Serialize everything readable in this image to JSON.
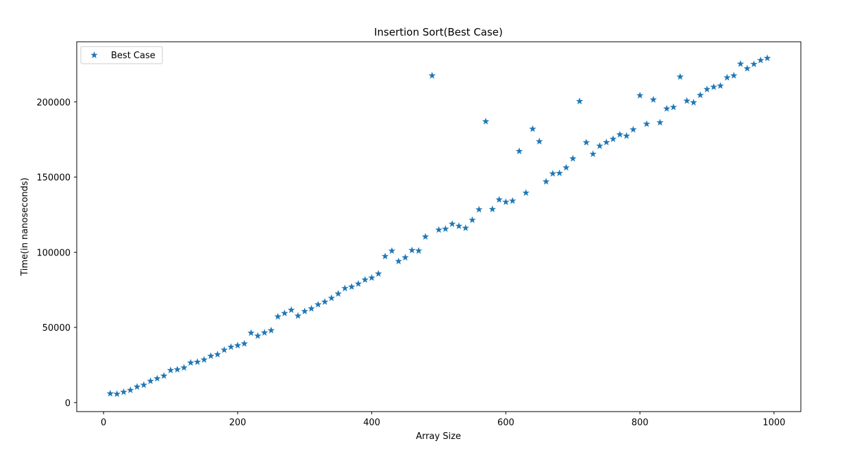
{
  "chart_data": {
    "type": "scatter",
    "title": "Insertion Sort(Best Case)",
    "xlabel": "Array Size",
    "ylabel": "Time(in nanoseconds)",
    "xlim": [
      -40,
      1040
    ],
    "ylim": [
      -6000,
      240000
    ],
    "xticks": [
      0,
      200,
      400,
      600,
      800,
      1000
    ],
    "yticks": [
      0,
      50000,
      100000,
      150000,
      200000
    ],
    "grid": false,
    "legend_position": "upper-left",
    "series": [
      {
        "name": "Best Case",
        "marker": "star",
        "color": "#1f77b4",
        "x": [
          10,
          20,
          30,
          40,
          50,
          60,
          70,
          80,
          90,
          100,
          110,
          120,
          130,
          140,
          150,
          160,
          170,
          180,
          190,
          200,
          210,
          220,
          230,
          240,
          250,
          260,
          270,
          280,
          290,
          300,
          310,
          320,
          330,
          340,
          350,
          360,
          370,
          380,
          390,
          400,
          410,
          420,
          430,
          440,
          450,
          460,
          470,
          480,
          490,
          500,
          510,
          520,
          530,
          540,
          550,
          560,
          570,
          580,
          590,
          600,
          610,
          620,
          630,
          640,
          650,
          660,
          670,
          680,
          690,
          700,
          710,
          720,
          730,
          740,
          750,
          760,
          770,
          780,
          790,
          800,
          810,
          820,
          830,
          840,
          850,
          860,
          870,
          880,
          890,
          900,
          910,
          920,
          930,
          940,
          950,
          960,
          970,
          980,
          990
        ],
        "y": [
          6000,
          5700,
          7000,
          8300,
          10500,
          11700,
          14300,
          16000,
          17800,
          21500,
          22000,
          23200,
          26500,
          27000,
          28500,
          31000,
          32000,
          35000,
          37000,
          38000,
          39200,
          46300,
          44400,
          46500,
          48000,
          57200,
          59400,
          61600,
          57700,
          60700,
          62500,
          65200,
          67000,
          69500,
          72400,
          76000,
          77000,
          79000,
          81700,
          83000,
          85700,
          97300,
          100900,
          94000,
          96500,
          101300,
          101000,
          110300,
          217500,
          114900,
          115500,
          118800,
          117400,
          116100,
          121400,
          128400,
          187000,
          128600,
          135000,
          133400,
          134200,
          167200,
          139500,
          182000,
          173700,
          147000,
          152300,
          152600,
          156300,
          162300,
          200400,
          173000,
          165300,
          170700,
          173100,
          175300,
          178300,
          177400,
          181600,
          204300,
          185300,
          201500,
          186300,
          195500,
          196500,
          216700,
          200700,
          199600,
          204500,
          208400,
          209900,
          210700,
          216200,
          217500,
          225300,
          222200,
          225100,
          227700,
          229100
        ]
      }
    ]
  }
}
